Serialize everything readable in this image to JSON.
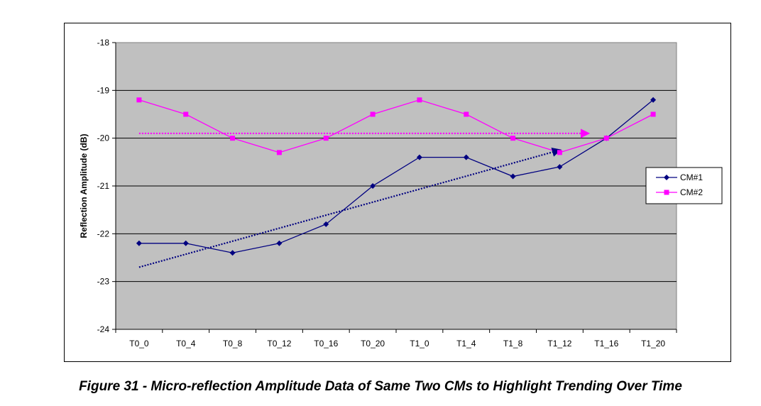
{
  "caption": "Figure 31 - Micro-reflection Amplitude Data of Same Two CMs to Highlight Trending Over Time",
  "chart_data": {
    "type": "line",
    "title": "",
    "xlabel": "",
    "ylabel": "Reflection Amplitude (dB)",
    "ylim": [
      -24,
      -18
    ],
    "yticks": [
      -24,
      -23,
      -22,
      -21,
      -20,
      -19,
      -18
    ],
    "grid": "horizontal",
    "plot_background": "#c0c0c0",
    "legend_position": "right",
    "categories": [
      "T0_0",
      "T0_4",
      "T0_8",
      "T0_12",
      "T0_16",
      "T0_20",
      "T1_0",
      "T1_4",
      "T1_8",
      "T1_12",
      "T1_16",
      "T1_20"
    ],
    "series": [
      {
        "name": "CM#1",
        "color": "#000080",
        "marker": "diamond",
        "values": [
          -22.2,
          -22.2,
          -22.4,
          -22.2,
          -21.8,
          -21.0,
          -20.4,
          -20.4,
          -20.8,
          -20.6,
          -20.0,
          -19.2
        ]
      },
      {
        "name": "CM#2",
        "color": "#ff00ff",
        "marker": "square",
        "values": [
          -19.2,
          -19.5,
          -20.0,
          -20.3,
          -20.0,
          -19.5,
          -19.2,
          -19.5,
          -20.0,
          -20.3,
          -20.0,
          -19.5
        ]
      }
    ],
    "trendlines": [
      {
        "series": "CM#1",
        "color": "#000080",
        "style": "dotted",
        "arrow": true,
        "from": {
          "x": "T0_0",
          "y": -22.7
        },
        "to": {
          "x": "T1_12",
          "y": -20.25
        }
      },
      {
        "series": "CM#2",
        "color": "#ff00ff",
        "style": "dotted",
        "arrow": true,
        "from": {
          "x": "T0_0",
          "y": -19.9
        },
        "to": {
          "x": "T1_12",
          "y": -19.9
        }
      }
    ]
  }
}
